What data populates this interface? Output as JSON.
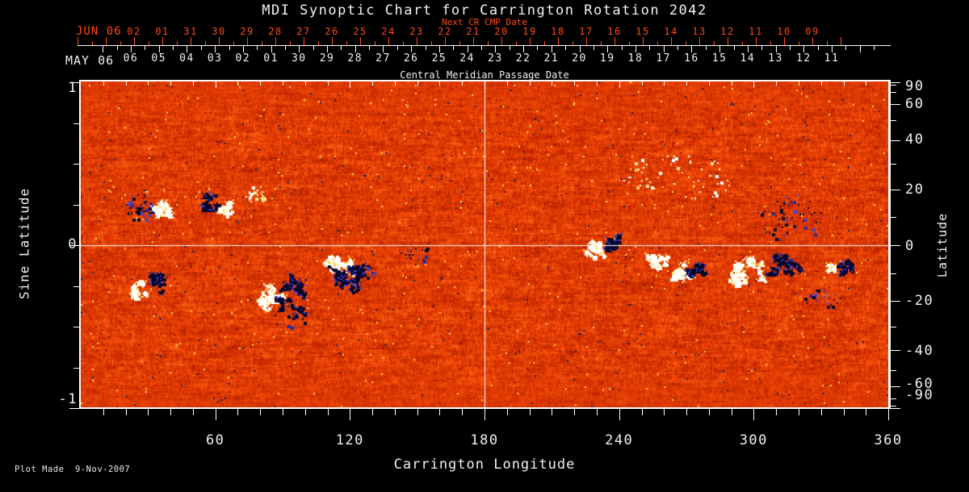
{
  "title": "MDI Synoptic Chart for Carrington Rotation 2042",
  "colors": {
    "background": "#000000",
    "frame": "#ffffff",
    "text": "#f2f2f2",
    "red_axis": "#ff4a14",
    "magnetogram_base": "#ee5008",
    "negative_polarity": "#06062a",
    "positive_polarity": "#ffffff",
    "speckle_yellow": "#ffd84e",
    "speckle_navy": "#1c1c60"
  },
  "top_red_axis": {
    "month_label": "JUN 06",
    "caption": "Next CR CMP Date",
    "day_labels": [
      "02",
      "01",
      "31",
      "30",
      "29",
      "28",
      "27",
      "26",
      "25",
      "24",
      "23",
      "22",
      "21",
      "20",
      "19",
      "18",
      "17",
      "16",
      "15",
      "14",
      "13",
      "12",
      "11",
      "10",
      "09"
    ]
  },
  "top_white_axis": {
    "month_label": "MAY 06",
    "caption": "Central Meridian Passage Date",
    "day_labels": [
      "06",
      "05",
      "04",
      "03",
      "02",
      "01",
      "30",
      "29",
      "28",
      "27",
      "26",
      "25",
      "24",
      "23",
      "22",
      "21",
      "20",
      "19",
      "18",
      "17",
      "16",
      "15",
      "14",
      "13",
      "12",
      "11"
    ]
  },
  "left_axis": {
    "title": "Sine Latitude",
    "tick_labels": [
      "1",
      "0",
      "-1"
    ]
  },
  "right_axis": {
    "title": "Latitude",
    "tick_labels": [
      "90",
      "60",
      "40",
      "20",
      "0",
      "-20",
      "-40",
      "-60",
      "-90"
    ]
  },
  "bottom_axis": {
    "title": "Carrington Longitude",
    "tick_labels": [
      "60",
      "120",
      "180",
      "240",
      "300",
      "360"
    ]
  },
  "footer": {
    "plot_made": "Plot Made  9-Nov-2007"
  },
  "chart_data": {
    "type": "heatmap",
    "title": "MDI Synoptic Chart for Carrington Rotation 2042",
    "xlabel": "Carrington Longitude",
    "xlim": [
      0,
      360
    ],
    "ylabel_left": "Sine Latitude",
    "ylim_left": [
      -1,
      1
    ],
    "ylabel_right": "Latitude",
    "ylim_right": [
      -90,
      90
    ],
    "grid_lines": {
      "longitude": [
        180
      ],
      "latitude": [
        0
      ]
    },
    "colormap": "red-temperature solar magnetogram: orange noise background, black/navy = negative polarity flux, white/cream = positive polarity flux",
    "palette": {
      "neg_core": "#06062a",
      "neg_fringe1": "#2a2a96",
      "neg_fringe2": "#4444c4",
      "pos_core": "#ffffff",
      "pos_fringe1": "#ffe9a0",
      "pos_fringe2": "#ffd050"
    },
    "active_regions": [
      {
        "lon": 27,
        "sine_lat": 0.23,
        "lon_extent": 14,
        "sine_lat_extent": 0.18,
        "polarity": "negative",
        "style": "speckle",
        "n": 60
      },
      {
        "lon": 35.5,
        "sine_lat": 0.22,
        "lon_extent": 9,
        "sine_lat_extent": 0.1,
        "polarity": "positive",
        "style": "blob",
        "n": 10
      },
      {
        "lon": 58,
        "sine_lat": 0.26,
        "lon_extent": 8,
        "sine_lat_extent": 0.11,
        "polarity": "negative",
        "style": "blob",
        "n": 10
      },
      {
        "lon": 64,
        "sine_lat": 0.22,
        "lon_extent": 6,
        "sine_lat_extent": 0.09,
        "polarity": "positive",
        "style": "blob",
        "n": 8
      },
      {
        "lon": 78,
        "sine_lat": 0.31,
        "lon_extent": 10,
        "sine_lat_extent": 0.1,
        "polarity": "positive",
        "style": "speckle",
        "n": 25
      },
      {
        "lon": 25.5,
        "sine_lat": -0.27,
        "lon_extent": 8,
        "sine_lat_extent": 0.12,
        "polarity": "positive",
        "style": "blob",
        "n": 8
      },
      {
        "lon": 33,
        "sine_lat": -0.24,
        "lon_extent": 10,
        "sine_lat_extent": 0.13,
        "polarity": "negative",
        "style": "blob",
        "n": 8
      },
      {
        "lon": 84,
        "sine_lat": -0.32,
        "lon_extent": 12,
        "sine_lat_extent": 0.16,
        "polarity": "positive",
        "style": "blob",
        "n": 16
      },
      {
        "lon": 93.5,
        "sine_lat": -0.31,
        "lon_extent": 14,
        "sine_lat_extent": 0.3,
        "polarity": "negative",
        "style": "blob",
        "n": 22
      },
      {
        "lon": 115,
        "sine_lat": -0.14,
        "lon_extent": 17,
        "sine_lat_extent": 0.15,
        "polarity": "positive",
        "style": "blob",
        "n": 20
      },
      {
        "lon": 118.5,
        "sine_lat": -0.2,
        "lon_extent": 16,
        "sine_lat_extent": 0.17,
        "polarity": "negative",
        "style": "blob",
        "n": 18
      },
      {
        "lon": 126,
        "sine_lat": -0.17,
        "lon_extent": 9,
        "sine_lat_extent": 0.1,
        "polarity": "negative",
        "style": "speckle",
        "n": 28
      },
      {
        "lon": 93,
        "sine_lat": -0.45,
        "lon_extent": 18,
        "sine_lat_extent": 0.12,
        "polarity": "negative",
        "style": "speckle",
        "n": 20
      },
      {
        "lon": 150,
        "sine_lat": -0.05,
        "lon_extent": 10,
        "sine_lat_extent": 0.16,
        "polarity": "negative",
        "style": "speckle",
        "n": 16
      },
      {
        "lon": 229,
        "sine_lat": -0.03,
        "lon_extent": 8,
        "sine_lat_extent": 0.13,
        "polarity": "positive",
        "style": "blob",
        "n": 10
      },
      {
        "lon": 237,
        "sine_lat": 0.01,
        "lon_extent": 6,
        "sine_lat_extent": 0.1,
        "polarity": "negative",
        "style": "blob",
        "n": 9
      },
      {
        "lon": 257,
        "sine_lat": -0.11,
        "lon_extent": 9,
        "sine_lat_extent": 0.11,
        "polarity": "positive",
        "style": "blob",
        "n": 10
      },
      {
        "lon": 268,
        "sine_lat": -0.16,
        "lon_extent": 10,
        "sine_lat_extent": 0.14,
        "polarity": "positive",
        "style": "blob",
        "n": 12
      },
      {
        "lon": 274,
        "sine_lat": -0.17,
        "lon_extent": 8,
        "sine_lat_extent": 0.1,
        "polarity": "negative",
        "style": "blob",
        "n": 9
      },
      {
        "lon": 266,
        "sine_lat": 0.4,
        "lon_extent": 48,
        "sine_lat_extent": 0.34,
        "polarity": "positive",
        "style": "speckle",
        "n": 60
      },
      {
        "lon": 296.5,
        "sine_lat": -0.16,
        "lon_extent": 18,
        "sine_lat_extent": 0.22,
        "polarity": "positive",
        "style": "blob",
        "n": 22
      },
      {
        "lon": 313,
        "sine_lat": -0.14,
        "lon_extent": 15,
        "sine_lat_extent": 0.16,
        "polarity": "negative",
        "style": "blob",
        "n": 18
      },
      {
        "lon": 317,
        "sine_lat": 0.16,
        "lon_extent": 28,
        "sine_lat_extent": 0.3,
        "polarity": "negative",
        "style": "speckle",
        "n": 55
      },
      {
        "lon": 331,
        "sine_lat": -0.33,
        "lon_extent": 16,
        "sine_lat_extent": 0.12,
        "polarity": "negative",
        "style": "speckle",
        "n": 22
      },
      {
        "lon": 341,
        "sine_lat": -0.15,
        "lon_extent": 9,
        "sine_lat_extent": 0.12,
        "polarity": "negative",
        "style": "blob",
        "n": 9
      },
      {
        "lon": 334,
        "sine_lat": -0.14,
        "lon_extent": 4,
        "sine_lat_extent": 0.05,
        "polarity": "positive",
        "style": "blob",
        "n": 4
      }
    ]
  }
}
